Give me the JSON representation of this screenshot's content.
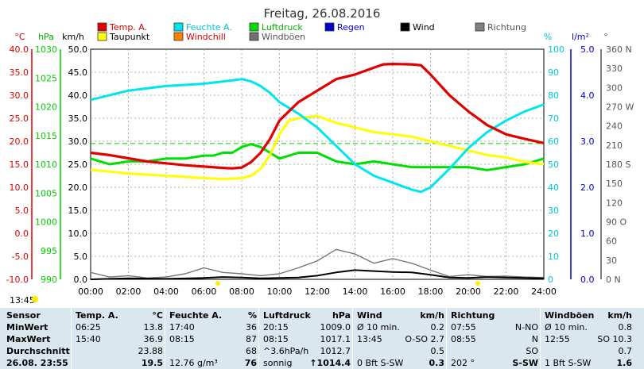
{
  "title": "Freitag, 26.08.2016",
  "legend": [
    {
      "label": "Temp. A.",
      "color": "#e00000"
    },
    {
      "label": "Feuchte A.",
      "color": "#00e5ee"
    },
    {
      "label": "Luftdruck",
      "color": "#00dd00"
    },
    {
      "label": "Regen",
      "color": "#0000cc"
    },
    {
      "label": "Wind",
      "color": "#000000"
    },
    {
      "label": "Richtung",
      "color": "#808080"
    },
    {
      "label": "Taupunkt",
      "color": "#ffff00"
    },
    {
      "label": "Windchill",
      "color": "#ff8000"
    },
    {
      "label": "Windböen",
      "color": "#707070"
    }
  ],
  "axis_units": {
    "temp": "°C",
    "pressure": "hPa",
    "speed": "km/h",
    "humidity": "%",
    "rain": "l/m²",
    "direction": "°"
  },
  "sun_time": "13:45",
  "chart_data": {
    "type": "line",
    "title": "Freitag, 26.08.2016",
    "x_ticks": [
      "00:00",
      "02:00",
      "04:00",
      "06:00",
      "08:00",
      "10:00",
      "12:00",
      "14:00",
      "16:00",
      "18:00",
      "20:00",
      "22:00",
      "24:00"
    ],
    "axes": {
      "temp": {
        "unit": "°C",
        "ylim": [
          -10,
          40
        ],
        "ticks": [
          "40.0",
          "35.0",
          "30.0",
          "25.0",
          "20.0",
          "15.0",
          "10.0",
          "5.0",
          "0.0",
          "-5.0",
          "-10.0"
        ]
      },
      "pressure": {
        "unit": "hPa",
        "ylim": [
          990,
          1030
        ],
        "ticks": [
          "1030",
          "1025",
          "1020",
          "1015",
          "1010",
          "1005",
          "1000",
          "995",
          "990"
        ]
      },
      "speed": {
        "unit": "km/h",
        "ylim": [
          0,
          50
        ],
        "ticks": [
          "50.0",
          "45.0",
          "40.0",
          "35.0",
          "30.0",
          "25.0",
          "20.0",
          "15.0",
          "10.0",
          "5.0",
          "0.0"
        ]
      },
      "humidity": {
        "unit": "%",
        "ylim": [
          0,
          100
        ],
        "ticks": [
          "100",
          "90",
          "80",
          "70",
          "60",
          "50",
          "40",
          "30",
          "20",
          "10",
          "0"
        ]
      },
      "rain": {
        "unit": "l/m²",
        "ylim": [
          0,
          5
        ],
        "ticks": [
          "5.0",
          "4.0",
          "3.0",
          "2.0",
          "1.0",
          "0.0"
        ]
      },
      "direction": {
        "unit": "°",
        "ylim": [
          0,
          360
        ],
        "ticks": [
          "360 N",
          "330",
          "300",
          "270 W",
          "240",
          "210",
          "180 S",
          "150",
          "120",
          "90 O",
          "60",
          "30",
          "0 N"
        ]
      }
    },
    "series": [
      {
        "name": "Temp. A.",
        "axis": "temp",
        "x": [
          0,
          1,
          2,
          3,
          4,
          5,
          6,
          7,
          7.5,
          8,
          8.5,
          9,
          9.5,
          10,
          11,
          12,
          13,
          14,
          15,
          15.5,
          16,
          17,
          17.5,
          18,
          19,
          20,
          21,
          22,
          23,
          24
        ],
        "y": [
          17.5,
          17,
          16.3,
          15.6,
          15.2,
          14.8,
          14.5,
          14.2,
          14.1,
          14.3,
          15.5,
          17.5,
          20.5,
          24.5,
          28.5,
          31,
          33.5,
          34.5,
          36,
          36.7,
          36.8,
          36.7,
          36.5,
          34.5,
          30,
          26.5,
          23.5,
          21.5,
          20.5,
          19.6
        ]
      },
      {
        "name": "Taupunkt",
        "axis": "temp",
        "x": [
          0,
          2,
          4,
          6,
          7,
          8,
          8.5,
          9,
          9.5,
          10,
          10.5,
          11,
          12,
          13,
          14,
          15,
          16,
          17,
          18,
          19,
          20,
          21,
          22,
          23,
          24
        ],
        "y": [
          13.8,
          13,
          12.5,
          12,
          11.8,
          12,
          12.5,
          14,
          17,
          21.5,
          24.5,
          25,
          25.5,
          24,
          23,
          22,
          21.5,
          21,
          20,
          19,
          18,
          17,
          16.5,
          15.5,
          15
        ]
      },
      {
        "name": "Feuchte A.",
        "axis": "humidity",
        "x": [
          0,
          1,
          2,
          3,
          4,
          5,
          6,
          7,
          7.5,
          8,
          8.5,
          9,
          9.5,
          10,
          11,
          12,
          13,
          14,
          15,
          16,
          17,
          17.5,
          18,
          19,
          20,
          21,
          22,
          23,
          24
        ],
        "y": [
          78,
          80,
          82,
          83,
          84,
          84.5,
          85,
          86,
          86.5,
          87,
          86,
          84,
          81,
          77,
          72,
          66,
          58,
          50,
          45,
          42,
          39,
          38,
          40,
          48,
          57,
          64,
          69,
          73,
          76
        ]
      },
      {
        "name": "Luftdruck",
        "axis": "pressure",
        "x": [
          0,
          1,
          2,
          3,
          4,
          5,
          6,
          6.5,
          7,
          7.5,
          8,
          8.5,
          9,
          9.5,
          10,
          11,
          12,
          13,
          14,
          15,
          16,
          17,
          18,
          19,
          20,
          21,
          22,
          23,
          24
        ],
        "y": [
          1011,
          1010,
          1010.5,
          1010.5,
          1011,
          1011,
          1011.5,
          1011.5,
          1012,
          1012,
          1013,
          1013.5,
          1013,
          1012,
          1011,
          1012,
          1012,
          1010.5,
          1010,
          1010.5,
          1010,
          1009.5,
          1009.5,
          1009.5,
          1009.5,
          1009,
          1009.5,
          1010,
          1011
        ]
      },
      {
        "name": "Wind",
        "axis": "speed",
        "x": [
          0,
          2,
          4,
          6,
          7,
          8,
          9,
          10,
          11,
          12,
          13,
          14,
          15,
          16,
          17,
          18,
          19,
          20,
          21,
          22,
          23,
          24
        ],
        "y": [
          0,
          0.2,
          0.1,
          0.3,
          0.5,
          0.4,
          0.2,
          0.3,
          0.4,
          0.8,
          1.5,
          2.0,
          1.8,
          1.6,
          1.5,
          1.0,
          0.4,
          0.3,
          0.5,
          0.4,
          0.3,
          0.2
        ]
      },
      {
        "name": "Windböen",
        "axis": "speed",
        "x": [
          0,
          1,
          2,
          3,
          4,
          5,
          6,
          7,
          8,
          9,
          10,
          11,
          12,
          13,
          14,
          15,
          16,
          17,
          18,
          19,
          20,
          21,
          22,
          23,
          24
        ],
        "y": [
          1.5,
          0.5,
          0.8,
          0.3,
          0.5,
          1.2,
          2.5,
          1.5,
          1.2,
          0.8,
          1.2,
          2.5,
          4.0,
          6.5,
          5.5,
          3.5,
          4.5,
          3.5,
          2.0,
          0.6,
          1.0,
          0.6,
          0.7,
          0.5,
          0.4
        ]
      }
    ],
    "reference_line": {
      "axis": "temp",
      "value": 19.5,
      "color": "#00cc00"
    }
  },
  "table": {
    "row_labels": [
      "Sensor",
      "MinWert",
      "MaxWert",
      "Durchschnitt",
      "26.08. 23:55"
    ],
    "columns": [
      {
        "title": "Temp. A.",
        "unit": "°C",
        "times": [
          "06:25",
          "15:40",
          "",
          ""
        ],
        "values": [
          "13.8",
          "36.9",
          "23.88",
          "19.5"
        ]
      },
      {
        "title": "Feuchte A.",
        "unit": "%",
        "times": [
          "17:40",
          "08:15",
          "",
          "12.76 g/m³"
        ],
        "values": [
          "36",
          "87",
          "68",
          "76"
        ]
      },
      {
        "title": "Luftdruck",
        "unit": "hPa",
        "times": [
          "20:15",
          "08:15",
          "^3.6hPa/h",
          "sonnig"
        ],
        "values": [
          "1009.0",
          "1017.1",
          "1012.7",
          "↑1014.4"
        ]
      },
      {
        "title": "Wind",
        "unit": "km/h",
        "times": [
          "Ø 10 min.",
          "13:45",
          "",
          "0 Bft S-SW"
        ],
        "values": [
          "0.2",
          "O-SO 2.7",
          "0.5",
          "0.3"
        ]
      },
      {
        "title": "Richtung",
        "unit": "",
        "times": [
          "07:55",
          "08:55",
          "",
          "202 °"
        ],
        "values": [
          "N-NO",
          "N",
          "SO",
          "S-SW"
        ]
      },
      {
        "title": "Windböen",
        "unit": "km/h",
        "times": [
          "Ø 10 min.",
          "12:55",
          "",
          "1 Bft S-SW"
        ],
        "values": [
          "0.8",
          "SO 10.3",
          "0.7",
          "1.6"
        ]
      }
    ]
  }
}
